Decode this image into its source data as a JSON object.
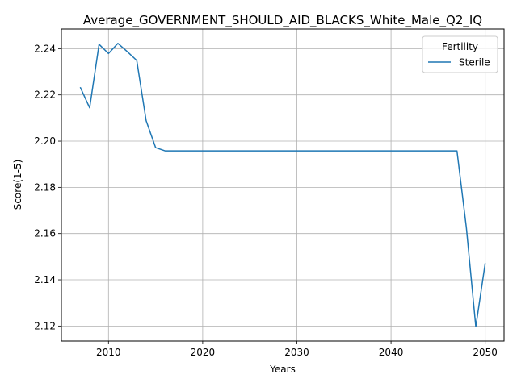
{
  "chart_data": {
    "type": "line",
    "title": "Average_GOVERNMENT_SHOULD_AID_BLACKS_White_Male_Q2_IQ",
    "xlabel": "Years",
    "ylabel": "Score(1-5)",
    "xlim": [
      2005,
      2052
    ],
    "ylim": [
      2.1135,
      2.2485
    ],
    "xticks": [
      2010,
      2020,
      2030,
      2040,
      2050
    ],
    "yticks": [
      2.12,
      2.14,
      2.16,
      2.18,
      2.2,
      2.22,
      2.24
    ],
    "ytick_labels": [
      "2.12",
      "2.14",
      "2.16",
      "2.18",
      "2.20",
      "2.22",
      "2.24"
    ],
    "grid": true,
    "legend": {
      "title": "Fertility",
      "position": "top-right"
    },
    "series": [
      {
        "name": "Sterile",
        "color": "#1f77b4",
        "x": [
          2007,
          2008,
          2009,
          2010,
          2011,
          2012,
          2013,
          2014,
          2015,
          2016,
          2017,
          2018,
          2019,
          2020,
          2021,
          2022,
          2023,
          2024,
          2025,
          2026,
          2027,
          2028,
          2029,
          2030,
          2031,
          2032,
          2033,
          2034,
          2035,
          2036,
          2037,
          2038,
          2039,
          2040,
          2041,
          2042,
          2043,
          2044,
          2045,
          2046,
          2047,
          2048,
          2049,
          2050
        ],
        "y": [
          2.2233,
          2.2144,
          2.2419,
          2.2379,
          2.2423,
          2.2387,
          2.2349,
          2.2088,
          2.1972,
          2.1958,
          2.1958,
          2.1958,
          2.1958,
          2.1958,
          2.1958,
          2.1958,
          2.1958,
          2.1958,
          2.1958,
          2.1958,
          2.1958,
          2.1958,
          2.1958,
          2.1958,
          2.1958,
          2.1958,
          2.1958,
          2.1958,
          2.1958,
          2.1958,
          2.1958,
          2.1958,
          2.1958,
          2.1958,
          2.1958,
          2.1958,
          2.1958,
          2.1958,
          2.1958,
          2.1958,
          2.1958,
          2.1625,
          2.1197,
          2.1472
        ]
      }
    ]
  }
}
